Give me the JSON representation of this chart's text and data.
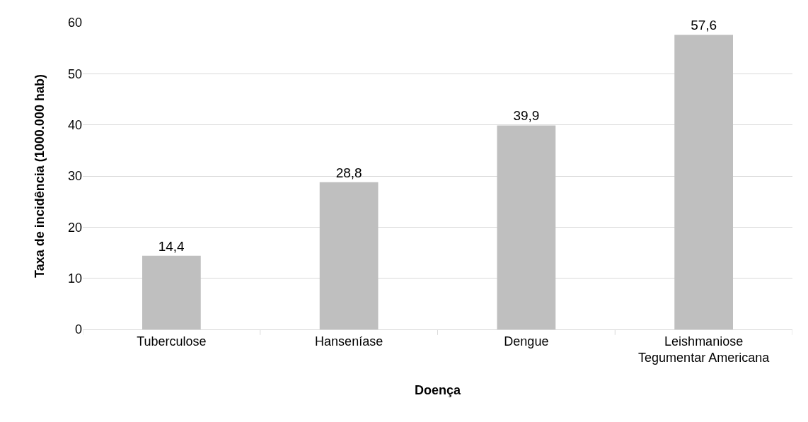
{
  "chart_data": {
    "type": "bar",
    "xlabel": "Doença",
    "ylabel": "Taxa de incidência (1000.000 hab)",
    "categories": [
      "Tuberculose",
      "Hanseníase",
      "Dengue",
      "Leishmaniose Tegumentar Americana"
    ],
    "values": [
      14.4,
      28.8,
      39.9,
      57.6
    ],
    "value_labels": [
      "14,4",
      "28,8",
      "39,9",
      "57,6"
    ],
    "color": "#bfbfbf",
    "ylim": [
      0,
      60
    ],
    "yticks": [
      0,
      10,
      20,
      30,
      40,
      50,
      60
    ],
    "grid": "y"
  }
}
